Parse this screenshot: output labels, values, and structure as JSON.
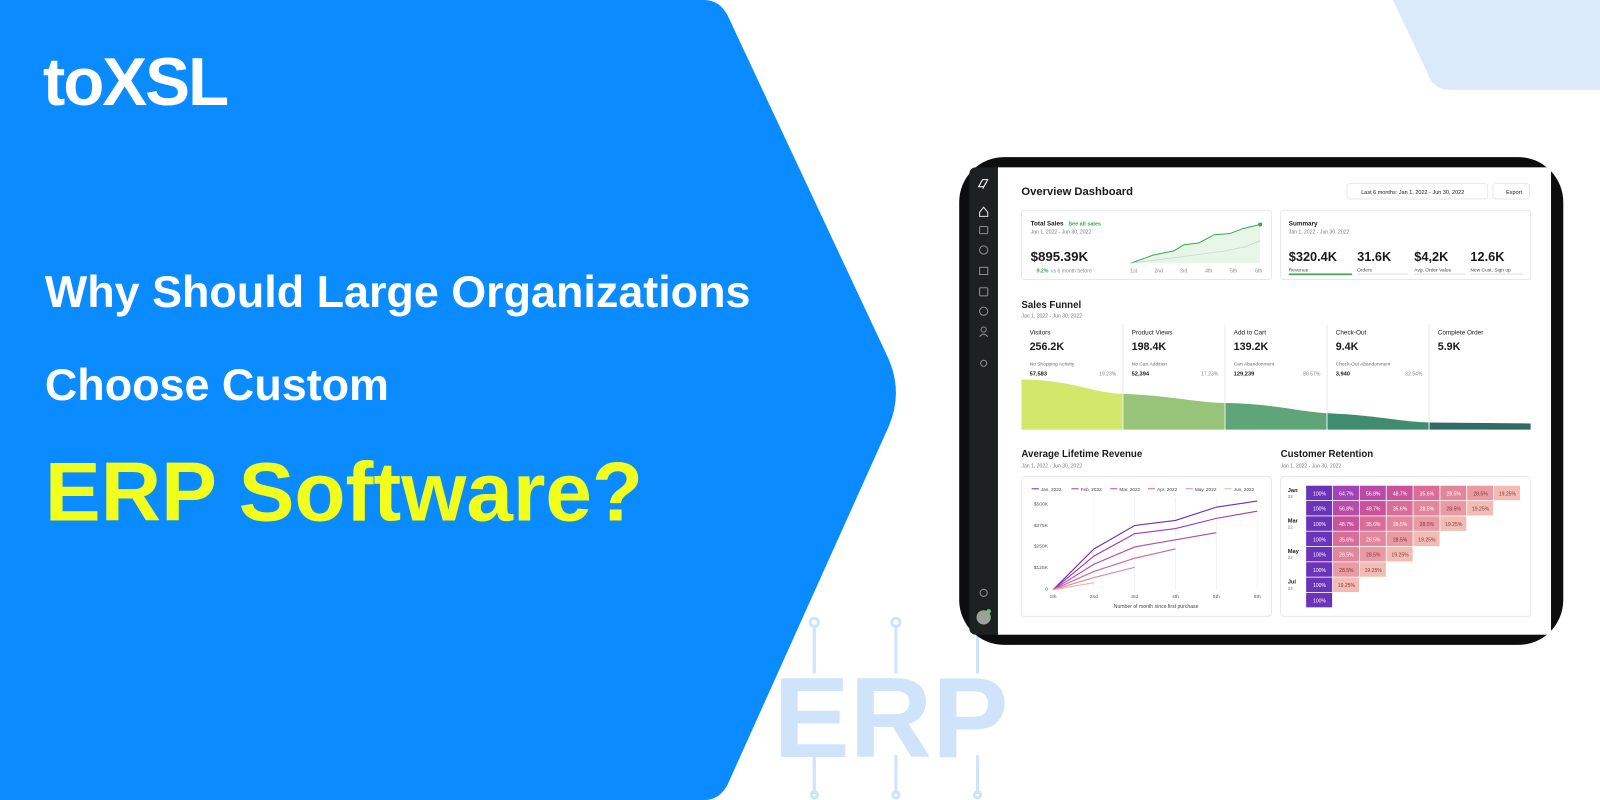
{
  "brand": "toXSL",
  "headline": {
    "line1": "Why Should Large Organizations",
    "line2": "Choose Custom",
    "highlight": "ERP Software?"
  },
  "watermark": "ERP",
  "dashboard": {
    "title": "Overview Dashboard",
    "date_filter": "Last 6 months: Jan 1, 2022 - Jun 30, 2022",
    "export": "Export",
    "total_sales": {
      "title": "Total Sales",
      "link": "See all sales",
      "period": "Jan 1, 2022 - Jun 30, 2022",
      "value": "$895.39K",
      "change": "9.2%",
      "change_note": "vs 6 month before",
      "x_labels": [
        "1st",
        "2nd",
        "3rd",
        "4th",
        "5th",
        "6th"
      ]
    },
    "summary": {
      "title": "Summary",
      "period": "Jan 1, 2022 - Jun 30, 2022",
      "metrics": [
        {
          "value": "$320.4K",
          "label": "Revenue"
        },
        {
          "value": "31.6K",
          "label": "Orders"
        },
        {
          "value": "$4,2K",
          "label": "Avg. Order Value"
        },
        {
          "value": "12.6K",
          "label": "New Cust. Sign up"
        }
      ]
    },
    "sales_funnel": {
      "title": "Sales Funnel",
      "period": "Jan 1, 2022 - Jun 30, 2022",
      "stages": [
        {
          "name": "Visitors",
          "value": "256.2K",
          "drop_label": "No Shopping Activity",
          "drop_value": "57,583",
          "drop_pct": "19.23%"
        },
        {
          "name": "Product Views",
          "value": "198.4K",
          "drop_label": "No Cart Addition",
          "drop_value": "52,394",
          "drop_pct": "17.23%"
        },
        {
          "name": "Add to Cart",
          "value": "139.2K",
          "drop_label": "Cart Abandonment",
          "drop_value": "129,239",
          "drop_pct": "86.57%"
        },
        {
          "name": "Check-Out",
          "value": "9.4K",
          "drop_label": "Check-Out Abandonment",
          "drop_value": "3,940",
          "drop_pct": "32.54%"
        },
        {
          "name": "Complete Order",
          "value": "5.9K"
        }
      ]
    },
    "lifetime_revenue": {
      "title": "Average Lifetime Revenue",
      "period": "Jan 1, 2022 - Jun 30, 2022",
      "legend": [
        "Jan, 2022",
        "Feb, 2022",
        "Mar, 2022",
        "Apr, 2022",
        "May, 2022",
        "Jun, 2022"
      ],
      "y_labels": [
        "$500K",
        "$375K",
        "$250K",
        "$125K",
        "0"
      ],
      "x_labels": [
        "1th",
        "2nd",
        "3rd",
        "4th",
        "5th",
        "6th"
      ],
      "x_title": "Number of month since first purchase"
    },
    "retention": {
      "title": "Customer Retention",
      "period": "Jan 1, 2022 - Jun 30, 2022",
      "rows": [
        {
          "month": "Jan",
          "year": "22",
          "cells": [
            "100%",
            "64.7%",
            "56.8%",
            "48.7%",
            "35.6%",
            "28.5%",
            "28.5%",
            "19.25%"
          ]
        },
        {
          "cells": [
            "100%",
            "56.8%",
            "48.7%",
            "35.6%",
            "28.5%",
            "28.5%",
            "19.25%"
          ]
        },
        {
          "month": "Mar",
          "year": "22",
          "cells": [
            "100%",
            "48.7%",
            "35.6%",
            "28.5%",
            "28.5%",
            "19.25%"
          ]
        },
        {
          "cells": [
            "100%",
            "35.6%",
            "28.5%",
            "28.5%",
            "19.25%"
          ]
        },
        {
          "month": "May",
          "year": "22",
          "cells": [
            "100%",
            "28.5%",
            "28.5%",
            "19.25%"
          ]
        },
        {
          "cells": [
            "100%",
            "28.5%",
            "19.25%"
          ]
        },
        {
          "month": "Jul",
          "year": "22",
          "cells": [
            "100%",
            "19.25%"
          ]
        },
        {
          "cells": [
            "100%"
          ]
        }
      ]
    }
  }
}
